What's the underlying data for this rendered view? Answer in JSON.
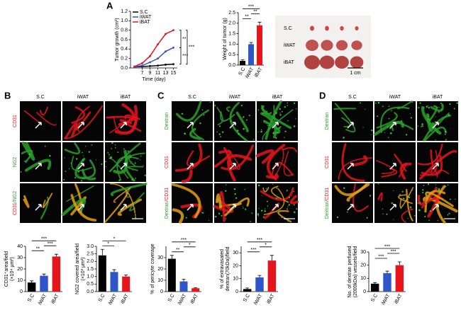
{
  "figure": {
    "panel_labels": [
      "A",
      "B",
      "C",
      "D"
    ],
    "photo": {
      "rows": [
        "S.C",
        "iWAT",
        "iBAT"
      ],
      "scale": "1 cm"
    },
    "grids": [
      {
        "columns": [
          "S.C",
          "iWAT",
          "iBAT"
        ],
        "rows": [
          [
            {
              "text": "CD31",
              "color": "#e8141c"
            }
          ],
          [
            {
              "text": "NG2",
              "color": "#2aa02a"
            }
          ],
          [
            {
              "text": "CD31",
              "color": "#e8141c"
            },
            {
              "text": "/NG2",
              "color": "#2aa02a"
            }
          ]
        ],
        "scale": "50μm"
      },
      {
        "columns": [
          "S.C",
          "iWAT",
          "iBAT"
        ],
        "rows": [
          [
            {
              "text": "Dextran",
              "color": "#2aa02a"
            }
          ],
          [
            {
              "text": "CD31",
              "color": "#e8141c"
            }
          ],
          [
            {
              "text": "Dextran",
              "color": "#2aa02a"
            },
            {
              "text": "/CD31",
              "color": "#e8141c"
            }
          ]
        ],
        "scale": "50μm"
      },
      {
        "columns": [
          "S.C",
          "iWAT",
          "iBAT"
        ],
        "rows": [
          [
            {
              "text": "Dextran",
              "color": "#2aa02a"
            }
          ],
          [
            {
              "text": "CD31",
              "color": "#e8141c"
            }
          ],
          [
            {
              "text": "Dextran",
              "color": "#2aa02a"
            },
            {
              "text": "/CD31",
              "color": "#e8141c"
            }
          ]
        ],
        "scale": "50μm"
      }
    ]
  },
  "chart_data": [
    {
      "type": "line",
      "ylabel": [
        "Tumor growth (cm³)"
      ],
      "xlabel": "Time (day)",
      "x": [
        5,
        7,
        9,
        11,
        13,
        15
      ],
      "xlim": [
        4,
        16
      ],
      "xticks": [
        7,
        9,
        11,
        13,
        15
      ],
      "ylim": [
        0,
        1.2
      ],
      "yticks": [
        {
          "value": 0,
          "label": "0.0"
        },
        0.2,
        0.4,
        0.6,
        0.8,
        {
          "value": 1,
          "label": "1.0"
        },
        1.2
      ],
      "series": [
        {
          "name": "S.C",
          "color": "#000000",
          "values": [
            0.02,
            0.03,
            0.04,
            0.05,
            0.07,
            0.08
          ]
        },
        {
          "name": "iWAT",
          "color": "#2f56c8",
          "values": [
            0.02,
            0.05,
            0.12,
            0.2,
            0.35,
            0.43
          ]
        },
        {
          "name": "iBAT",
          "color": "#e8141c",
          "values": [
            0.03,
            0.1,
            0.25,
            0.5,
            0.72,
            0.8
          ]
        }
      ],
      "annotations": [
        "**",
        "***",
        "***"
      ]
    },
    {
      "type": "bar",
      "ylabel": [
        "Weight of tumor (g)"
      ],
      "categories": [
        "S.C",
        "iWAT",
        "iBAT"
      ],
      "values": [
        0.2,
        1.0,
        1.9
      ],
      "errors": [
        0.05,
        0.08,
        0.15
      ],
      "colors": [
        "#000000",
        "#2f56c8",
        "#e8141c"
      ],
      "ylim": [
        0,
        2.5
      ],
      "yticks": [
        {
          "value": 0,
          "label": "0.0"
        },
        0.5,
        {
          "value": 1,
          "label": "1.0"
        },
        1.5,
        {
          "value": 2,
          "label": "2.0"
        },
        2.5
      ],
      "annotations": [
        "**",
        "**",
        "***"
      ]
    },
    {
      "type": "bar",
      "ylabel": [
        "CD31⁺area/field",
        "(×10⁴ μm²)"
      ],
      "categories": [
        "S.C",
        "iWAT",
        "iBAT"
      ],
      "values": [
        8,
        14,
        31
      ],
      "errors": [
        1.5,
        1.5,
        2
      ],
      "colors": [
        "#000000",
        "#2f56c8",
        "#e8141c"
      ],
      "ylim": [
        0,
        40
      ],
      "yticks": [
        0,
        10,
        20,
        30,
        40
      ],
      "annotations": [
        "**",
        "***",
        "***"
      ]
    },
    {
      "type": "bar",
      "ylabel": [
        "NG2 covered area/field",
        "(×10³ μm²)"
      ],
      "categories": [
        "S.C",
        "iWAT",
        "iBAT"
      ],
      "values": [
        2.4,
        1.3,
        1.0
      ],
      "errors": [
        0.4,
        0.15,
        0.1
      ],
      "colors": [
        "#000000",
        "#2f56c8",
        "#e8141c"
      ],
      "ylim": [
        0,
        3
      ],
      "yticks": [
        {
          "value": 0,
          "label": "0.0"
        },
        0.5,
        {
          "value": 1,
          "label": "1.0"
        },
        1.5,
        {
          "value": 2,
          "label": "2.0"
        },
        2.5,
        {
          "value": 3,
          "label": "3.0"
        }
      ],
      "annotations": [
        "*",
        "*"
      ]
    },
    {
      "type": "bar",
      "ylabel": [
        "% of pericyte coverage"
      ],
      "categories": [
        "S.C",
        "iWAT",
        "iBAT"
      ],
      "values": [
        29,
        9,
        3
      ],
      "errors": [
        3,
        2,
        0.5
      ],
      "colors": [
        "#000000",
        "#2f56c8",
        "#e8141c"
      ],
      "ylim": [
        0,
        40
      ],
      "yticks": [
        0,
        10,
        20,
        30
      ],
      "annotations": [
        "**",
        "*",
        "***"
      ]
    },
    {
      "type": "bar",
      "ylabel": [
        "% of extravasated",
        "dextran(70kDa)/field"
      ],
      "categories": [
        "S.C",
        "iWAT",
        "iBAT"
      ],
      "values": [
        2,
        11,
        24
      ],
      "errors": [
        0.8,
        1.5,
        4
      ],
      "colors": [
        "#000000",
        "#2f56c8",
        "#e8141c"
      ],
      "ylim": [
        0,
        35
      ],
      "yticks": [
        0,
        10,
        20,
        30
      ],
      "annotations": [
        "***",
        "*",
        "***"
      ]
    },
    {
      "type": "bar",
      "ylabel": [
        "No. of dextran perfused",
        "(2000kDa) vessels/field"
      ],
      "categories": [
        "S.C",
        "iWAT",
        "iBAT"
      ],
      "values": [
        6,
        14,
        20
      ],
      "errors": [
        0.8,
        1.5,
        2.5
      ],
      "colors": [
        "#000000",
        "#2f56c8",
        "#e8141c"
      ],
      "ylim": [
        0,
        30
      ],
      "yticks": [
        0,
        10,
        20,
        30
      ],
      "annotations": [
        "***",
        "***",
        "***"
      ]
    }
  ]
}
